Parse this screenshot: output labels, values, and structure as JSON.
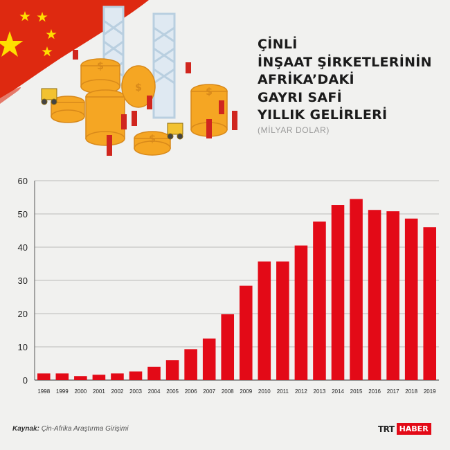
{
  "title": {
    "lines": [
      "ÇİNLİ",
      "İNŞAAT ŞİRKETLERİNİN",
      "AFRİKA’DAKİ",
      "GAYRI SAFİ",
      "YILLIK GELİRLERİ"
    ],
    "subtitle": "(MİLYAR DOLAR)"
  },
  "source": {
    "label": "Kaynak:",
    "text": "Çin-Afrika Araştırma Girişimi"
  },
  "logo": {
    "part1": "TRT",
    "part2": "HABER"
  },
  "colors": {
    "bar": "#e30a17",
    "flag_red": "#de2910",
    "flag_star": "#ffde00",
    "coin": "#f5a623"
  },
  "chart_data": {
    "type": "bar",
    "categories": [
      "1998",
      "1999",
      "2000",
      "2001",
      "2002",
      "2003",
      "2004",
      "2005",
      "2006",
      "2007",
      "2008",
      "2009",
      "2010",
      "2011",
      "2012",
      "2013",
      "2014",
      "2015",
      "2016",
      "2017",
      "2018",
      "2019"
    ],
    "values": [
      2,
      2,
      1.2,
      1.6,
      2,
      2.6,
      4,
      6,
      9.3,
      12.5,
      19.8,
      28.4,
      35.7,
      35.7,
      40.5,
      47.7,
      52.7,
      54.5,
      51.2,
      50.8,
      48.6,
      46
    ],
    "ylim": [
      0,
      60
    ],
    "yticks": [
      0,
      10,
      20,
      30,
      40,
      50,
      60
    ],
    "grid": true,
    "xlabel": "",
    "ylabel": ""
  }
}
